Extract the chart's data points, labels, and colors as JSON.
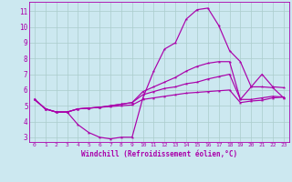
{
  "background_color": "#cce8f0",
  "grid_color": "#aacccc",
  "line_color": "#aa00aa",
  "xlim": [
    -0.5,
    23.5
  ],
  "ylim": [
    2.7,
    11.6
  ],
  "xticks": [
    0,
    1,
    2,
    3,
    4,
    5,
    6,
    7,
    8,
    9,
    10,
    11,
    12,
    13,
    14,
    15,
    16,
    17,
    18,
    19,
    20,
    21,
    22,
    23
  ],
  "yticks": [
    3,
    4,
    5,
    6,
    7,
    8,
    9,
    10,
    11
  ],
  "xlabel": "Windchill (Refroidissement éolien,°C)",
  "series": [
    [
      5.4,
      4.8,
      4.6,
      4.6,
      3.8,
      3.3,
      3.0,
      2.9,
      3.0,
      3.0,
      5.5,
      7.2,
      8.6,
      9.0,
      10.5,
      11.1,
      11.2,
      10.1,
      8.5,
      7.8,
      6.2,
      6.2,
      6.15,
      5.5
    ],
    [
      5.4,
      4.8,
      4.6,
      4.6,
      4.8,
      4.85,
      4.9,
      4.95,
      5.0,
      5.05,
      5.4,
      5.5,
      5.6,
      5.7,
      5.8,
      5.85,
      5.9,
      5.95,
      6.0,
      5.2,
      5.3,
      5.35,
      5.5,
      5.55
    ],
    [
      5.4,
      4.8,
      4.6,
      4.6,
      4.8,
      4.85,
      4.9,
      5.0,
      5.1,
      5.2,
      5.7,
      5.9,
      6.1,
      6.2,
      6.4,
      6.5,
      6.7,
      6.85,
      7.0,
      5.4,
      6.2,
      7.0,
      6.2,
      6.15
    ],
    [
      5.4,
      4.8,
      4.6,
      4.6,
      4.8,
      4.85,
      4.9,
      5.0,
      5.1,
      5.2,
      5.9,
      6.2,
      6.5,
      6.8,
      7.2,
      7.5,
      7.7,
      7.8,
      7.8,
      5.4,
      5.4,
      5.5,
      5.6,
      5.55
    ]
  ]
}
